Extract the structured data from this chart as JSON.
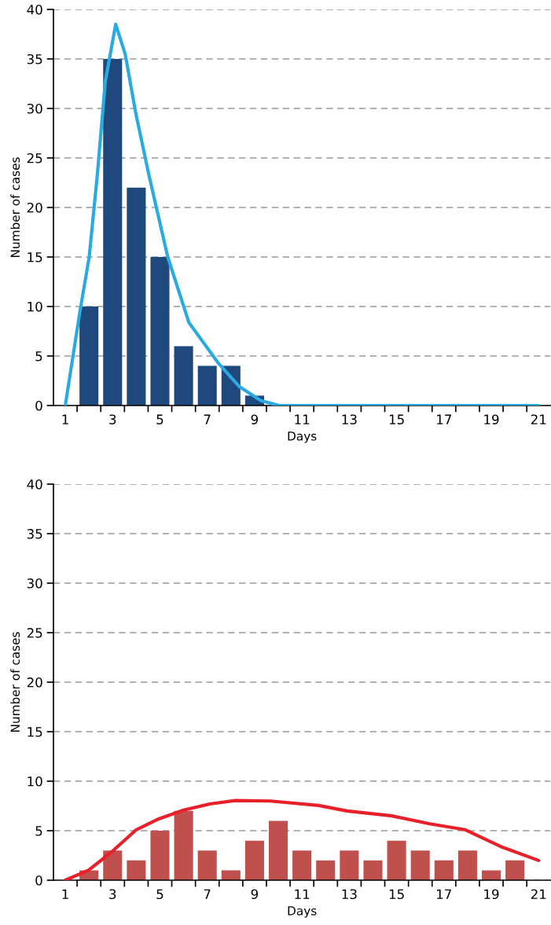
{
  "chart_data": [
    {
      "type": "bar",
      "xlabel": "Days",
      "ylabel": "Number of cases",
      "xlim": [
        0.5,
        21.5
      ],
      "ylim": [
        0,
        40
      ],
      "yticks": [
        0,
        5,
        10,
        15,
        20,
        25,
        30,
        35,
        40
      ],
      "xticks": [
        1,
        3,
        5,
        7,
        9,
        11,
        13,
        15,
        17,
        19,
        21,
        {
          "value": 1.5,
          "label": null
        },
        {
          "value": 2.5,
          "label": null
        },
        {
          "value": 3.5,
          "label": null
        },
        {
          "value": 4.5,
          "label": null
        },
        {
          "value": 5.5,
          "label": null
        },
        {
          "value": 6.5,
          "label": null
        },
        {
          "value": 7.5,
          "label": null
        },
        {
          "value": 8.5,
          "label": null
        },
        {
          "value": 9.5,
          "label": null
        },
        {
          "value": 10.5,
          "label": null
        },
        {
          "value": 11.5,
          "label": null
        },
        {
          "value": 12.5,
          "label": null
        },
        {
          "value": 13.5,
          "label": null
        },
        {
          "value": 14.5,
          "label": null
        },
        {
          "value": 15.5,
          "label": null
        },
        {
          "value": 16.5,
          "label": null
        },
        {
          "value": 17.5,
          "label": null
        },
        {
          "value": 18.5,
          "label": null
        },
        {
          "value": 19.5,
          "label": null
        },
        {
          "value": 20.5,
          "label": null
        }
      ],
      "grid": "y",
      "series": [
        {
          "color": "#1f497d",
          "x": [
            2,
            3,
            4,
            5,
            6,
            7,
            8,
            9
          ],
          "values": [
            10,
            35,
            22,
            15,
            6,
            4,
            4,
            1
          ]
        },
        {
          "type": "line",
          "color": "#29abe2",
          "line_style": "solid",
          "marker": "none",
          "x": [
            1,
            1.62,
            2.01,
            2.35,
            2.69,
            3.13,
            3.53,
            3.98,
            4.54,
            5.33,
            6.22,
            7.46,
            8.36,
            9.26,
            10.04,
            21
          ],
          "values": [
            0,
            9.5,
            15,
            23.2,
            32.7,
            38.5,
            35.5,
            29.5,
            23.2,
            15,
            8.4,
            4.3,
            1.9,
            0.5,
            0,
            0
          ]
        }
      ]
    },
    {
      "type": "bar",
      "xlabel": "Days",
      "ylabel": "Number of cases",
      "xlim": [
        0.5,
        21.5
      ],
      "ylim": [
        0,
        40
      ],
      "yticks": [
        0,
        5,
        10,
        15,
        20,
        25,
        30,
        35,
        40
      ],
      "xticks": [
        1,
        3,
        5,
        7,
        9,
        11,
        13,
        15,
        17,
        19,
        21,
        {
          "value": 1.5,
          "label": null
        },
        {
          "value": 2.5,
          "label": null
        },
        {
          "value": 3.5,
          "label": null
        },
        {
          "value": 4.5,
          "label": null
        },
        {
          "value": 5.5,
          "label": null
        },
        {
          "value": 6.5,
          "label": null
        },
        {
          "value": 7.5,
          "label": null
        },
        {
          "value": 8.5,
          "label": null
        },
        {
          "value": 9.5,
          "label": null
        },
        {
          "value": 10.5,
          "label": null
        },
        {
          "value": 11.5,
          "label": null
        },
        {
          "value": 12.5,
          "label": null
        },
        {
          "value": 13.5,
          "label": null
        },
        {
          "value": 14.5,
          "label": null
        },
        {
          "value": 15.5,
          "label": null
        },
        {
          "value": 16.5,
          "label": null
        },
        {
          "value": 17.5,
          "label": null
        },
        {
          "value": 18.5,
          "label": null
        },
        {
          "value": 19.5,
          "label": null
        },
        {
          "value": 20.5,
          "label": null
        }
      ],
      "grid": "y",
      "series": [
        {
          "color": "#c0504d",
          "x": [
            2,
            3,
            4,
            5,
            6,
            7,
            8,
            9,
            10,
            11,
            12,
            13,
            14,
            15,
            16,
            17,
            18,
            19,
            20
          ],
          "values": [
            1,
            3,
            2,
            5,
            7,
            3,
            1,
            4,
            6,
            3,
            2,
            3,
            2,
            4,
            3,
            2,
            3,
            1,
            2
          ]
        },
        {
          "type": "line",
          "color": "#e8202a",
          "line_style": "solid",
          "marker": "none",
          "x": [
            1,
            1.98,
            2.93,
            4.0,
            4.95,
            6.03,
            7.1,
            8.18,
            9.67,
            11.7,
            12.9,
            14.8,
            16.4,
            17.9,
            19.4,
            21
          ],
          "values": [
            0,
            1.0,
            2.8,
            5.1,
            6.2,
            7.1,
            7.7,
            8.05,
            8.0,
            7.55,
            7.0,
            6.5,
            5.7,
            5.1,
            3.4,
            2.0
          ]
        }
      ]
    }
  ]
}
